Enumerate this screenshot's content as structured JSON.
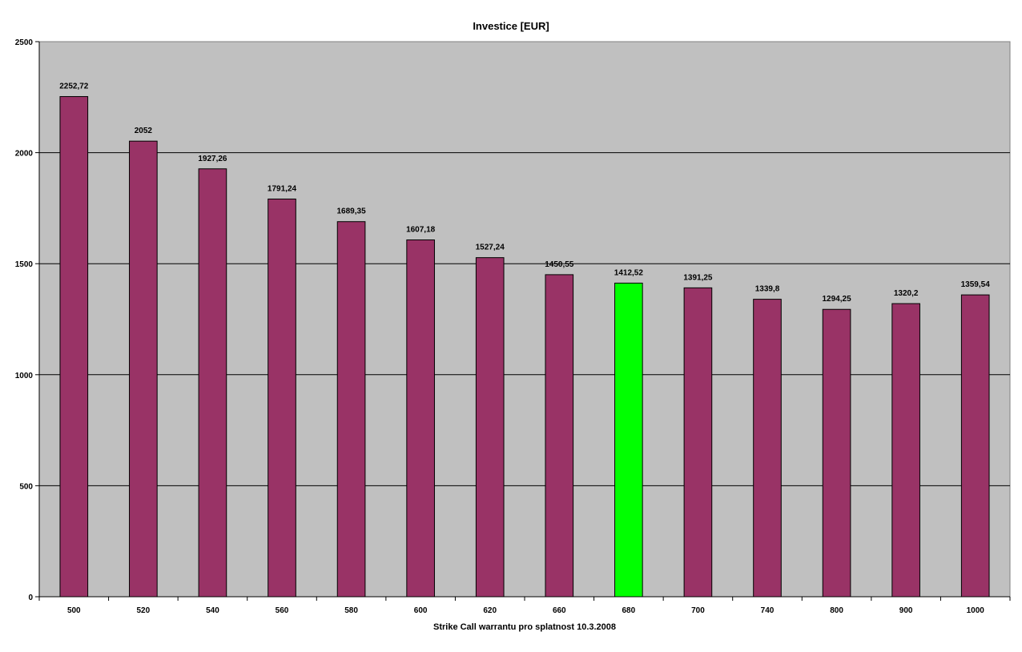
{
  "chart_data": {
    "type": "bar",
    "title": "Investice [EUR]",
    "xlabel": "Strike Call warrantu pro splatnost 10.3.2008",
    "ylabel": "",
    "ylim": [
      0,
      2500
    ],
    "yticks": [
      0,
      500,
      1000,
      1500,
      2000,
      2500
    ],
    "grid": true,
    "legend": "none",
    "categories": [
      "500",
      "520",
      "540",
      "560",
      "580",
      "600",
      "620",
      "660",
      "680",
      "700",
      "740",
      "800",
      "900",
      "1000"
    ],
    "values": [
      2252.72,
      2052,
      1927.26,
      1791.24,
      1689.35,
      1607.18,
      1527.24,
      1450.55,
      1412.52,
      1391.25,
      1339.8,
      1294.25,
      1320.2,
      1359.54
    ],
    "value_labels": [
      "2252,72",
      "2052",
      "1927,26",
      "1791,24",
      "1689,35",
      "1607,18",
      "1527,24",
      "1450,55",
      "1412,52",
      "1391,25",
      "1339,8",
      "1294,25",
      "1320,2",
      "1359,54"
    ],
    "highlight_category": "680",
    "colors": {
      "bar": "#993366",
      "highlight": "#00ff00",
      "plot_background": "#c0c0c0",
      "gridline": "#000000"
    }
  }
}
